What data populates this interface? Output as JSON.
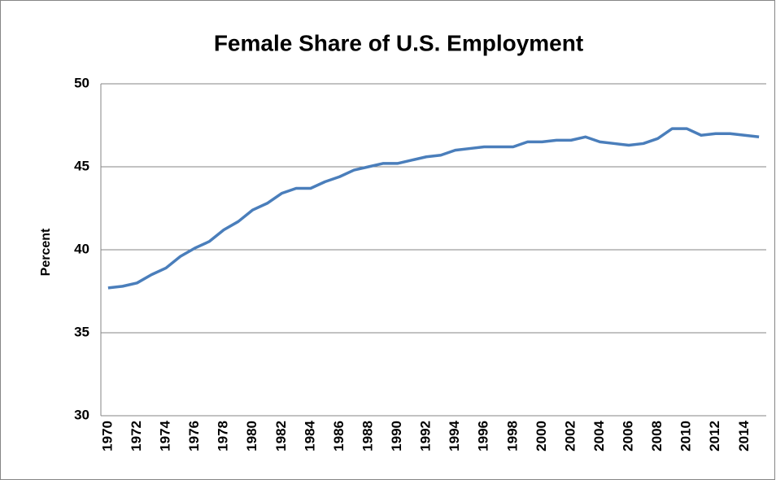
{
  "chart_data": {
    "type": "line",
    "title": "Female Share of U.S. Employment",
    "y_label": "Percent",
    "categories": [
      "1970",
      null,
      "1972",
      null,
      "1974",
      null,
      "1976",
      null,
      "1978",
      null,
      "1980",
      null,
      "1982",
      null,
      "1984",
      null,
      "1986",
      null,
      "1988",
      null,
      "1990",
      null,
      "1992",
      null,
      "1994",
      null,
      "1996",
      null,
      "1998",
      null,
      "2000",
      null,
      "2002",
      null,
      "2004",
      null,
      "2006",
      null,
      "2008",
      null,
      "2010",
      null,
      "2012",
      null,
      "2014",
      null
    ],
    "series": [
      {
        "name": "Female share",
        "color": "#4a7ebb",
        "values": [
          37.7,
          37.8,
          38.0,
          38.5,
          38.9,
          39.6,
          40.1,
          40.5,
          41.2,
          41.7,
          42.4,
          42.8,
          43.4,
          43.7,
          43.7,
          44.1,
          44.4,
          44.8,
          45.0,
          45.2,
          45.2,
          45.4,
          45.6,
          45.7,
          46.0,
          46.1,
          46.2,
          46.2,
          46.2,
          46.5,
          46.5,
          46.6,
          46.6,
          46.8,
          46.5,
          46.4,
          46.3,
          46.4,
          46.7,
          47.3,
          47.3,
          46.9,
          47.0,
          47.0,
          46.9,
          46.8
        ]
      }
    ],
    "ylim": [
      30,
      50
    ],
    "yticks": [
      30,
      35,
      40,
      45,
      50
    ],
    "grid": true
  }
}
